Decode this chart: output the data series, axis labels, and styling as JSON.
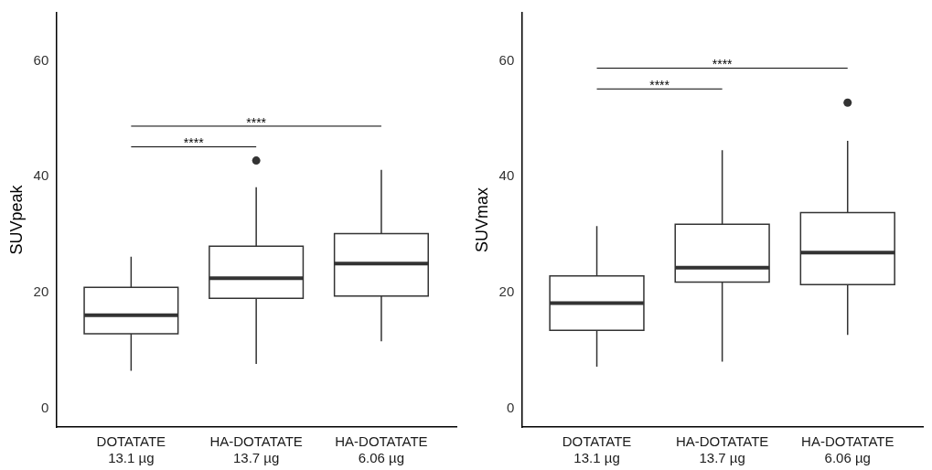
{
  "chart_data": [
    {
      "type": "box",
      "ylabel": "SUVpeak",
      "categories": [
        "DOTATATE\n13.1 µg",
        "HA-DOTATATE\n13.7 µg",
        "HA-DOTATATE\n6.06 µg"
      ],
      "color": "#333333",
      "boxes": [
        {
          "low": 6.5,
          "q1": 12.9,
          "median": 16.1,
          "q3": 20.9,
          "high": 26.2
        },
        {
          "low": 7.7,
          "q1": 19.0,
          "median": 22.5,
          "q3": 28.0,
          "high": 38.2,
          "outliers": [
            42.8
          ]
        },
        {
          "low": 11.6,
          "q1": 19.4,
          "median": 25.0,
          "q3": 30.2,
          "high": 41.2
        }
      ],
      "ylim": [
        -3.2,
        68.3
      ],
      "yticks": [
        0,
        20,
        40,
        60
      ],
      "annotations": [
        "****",
        "****"
      ]
    },
    {
      "type": "box",
      "ylabel": "SUVmax",
      "categories": [
        "DOTATATE\n13.1 µg",
        "HA-DOTATATE\n13.7 µg",
        "HA-DOTATATE\n6.06 µg"
      ],
      "color": "#333333",
      "boxes": [
        {
          "low": 7.2,
          "q1": 13.5,
          "median": 18.2,
          "q3": 22.9,
          "high": 31.5
        },
        {
          "low": 8.1,
          "q1": 21.8,
          "median": 24.3,
          "q3": 31.8,
          "high": 44.6
        },
        {
          "low": 12.7,
          "q1": 21.4,
          "median": 26.9,
          "q3": 33.8,
          "high": 46.2,
          "outliers": [
            52.8
          ]
        }
      ],
      "ylim": [
        -3.2,
        68.3
      ],
      "yticks": [
        0,
        20,
        40,
        60
      ],
      "annotations": [
        "****",
        "****"
      ]
    }
  ]
}
